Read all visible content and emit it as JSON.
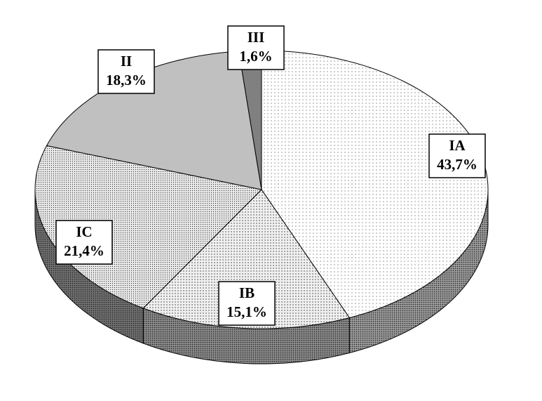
{
  "chart_data": {
    "type": "pie",
    "categories": [
      "IA",
      "IB",
      "IC",
      "II",
      "III"
    ],
    "values": [
      43.7,
      15.1,
      21.4,
      18.3,
      1.6
    ],
    "value_labels": [
      "43,7%",
      "15,1%",
      "21,4%",
      "18,3%",
      "1,6%"
    ],
    "colors": [
      "#ffffff",
      "#f0f0f0",
      "#e8e8e8",
      "#c0c0c0",
      "#808080"
    ]
  }
}
